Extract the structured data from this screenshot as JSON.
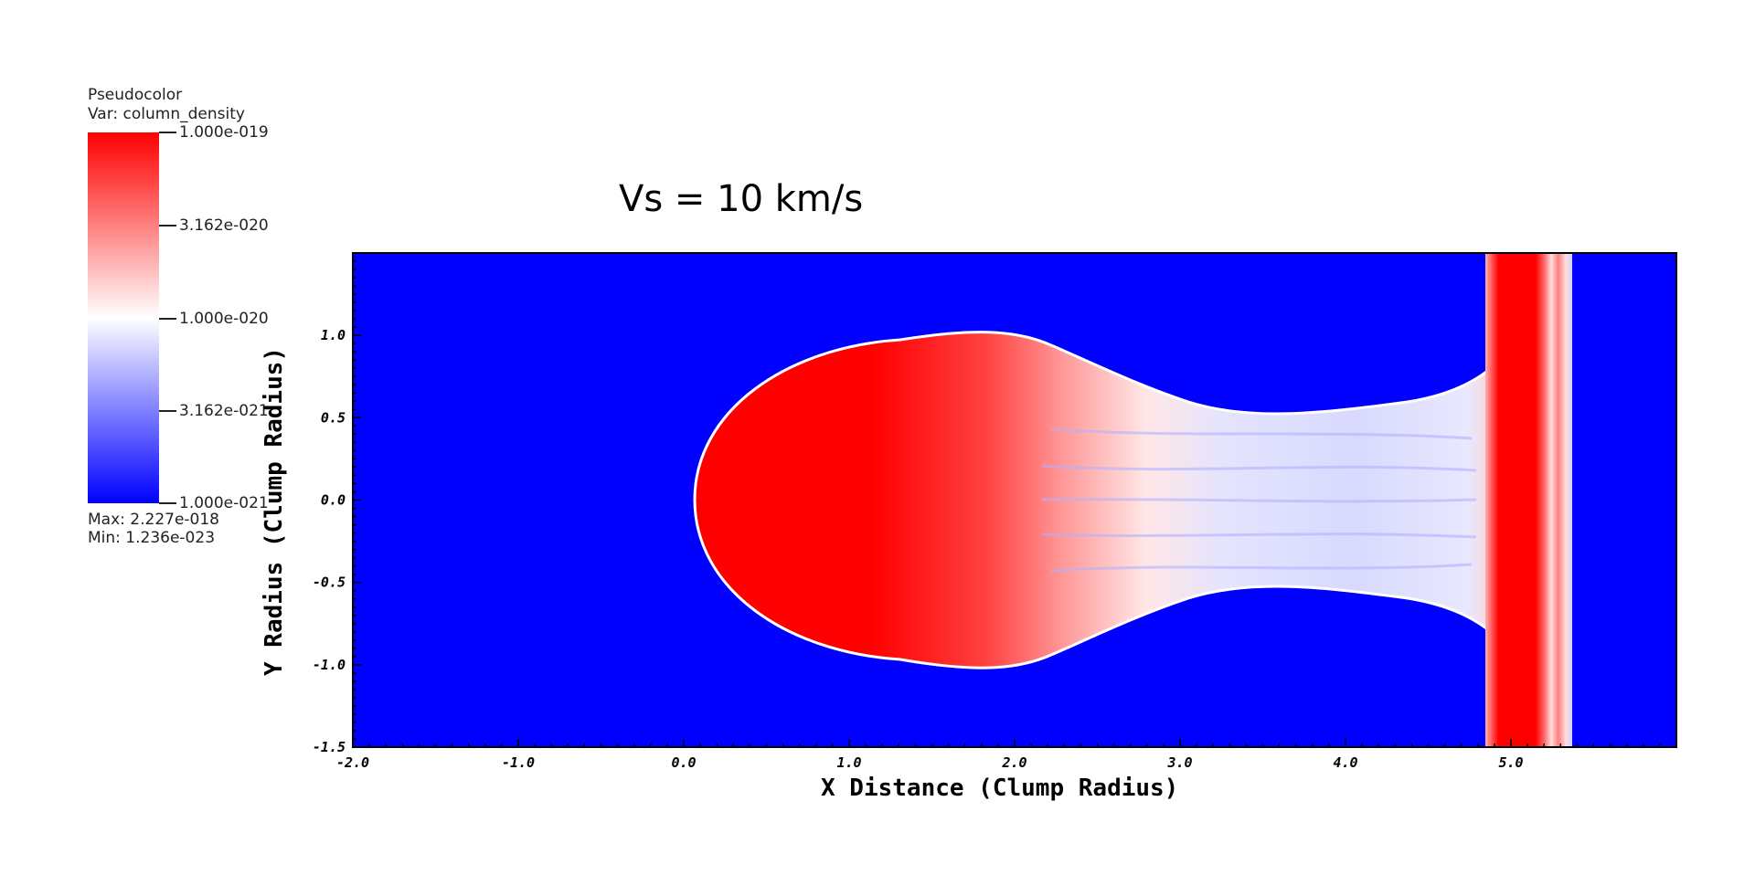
{
  "legend": {
    "plot_type": "Pseudocolor",
    "variable": "Var: column_density",
    "colors": [
      "#ff0000",
      "#ffffff",
      "#0000ff"
    ],
    "ticks": [
      "1.000e-019",
      "3.162e-020",
      "1.000e-020",
      "3.162e-021",
      "1.000e-021"
    ],
    "max": "Max:  2.227e-018",
    "min": "Min:  1.236e-023"
  },
  "chart_data": {
    "type": "heatmap",
    "title": "Vs = 10 km/s",
    "xlabel": "X Distance (Clump Radius)",
    "ylabel": "Y Radius (Clump Radius)",
    "xlim": [
      -2.0,
      6.0
    ],
    "ylim": [
      -1.5,
      1.5
    ],
    "xticks": [
      "-2.0",
      "-1.0",
      "0.0",
      "1.0",
      "2.0",
      "3.0",
      "4.0",
      "5.0"
    ],
    "yticks": [
      "-1.5",
      "-1.0",
      "-0.5",
      "0.0",
      "0.5",
      "1.0"
    ],
    "background_color": "#0000ff",
    "clump": {
      "x_front": 0.08,
      "x_widest": 1.8,
      "half_height": 1.0,
      "tail_end_x": 4.85,
      "tail_half_height": 0.48
    },
    "shock_front": {
      "x_start": 4.88,
      "x_end": 5.35
    }
  }
}
